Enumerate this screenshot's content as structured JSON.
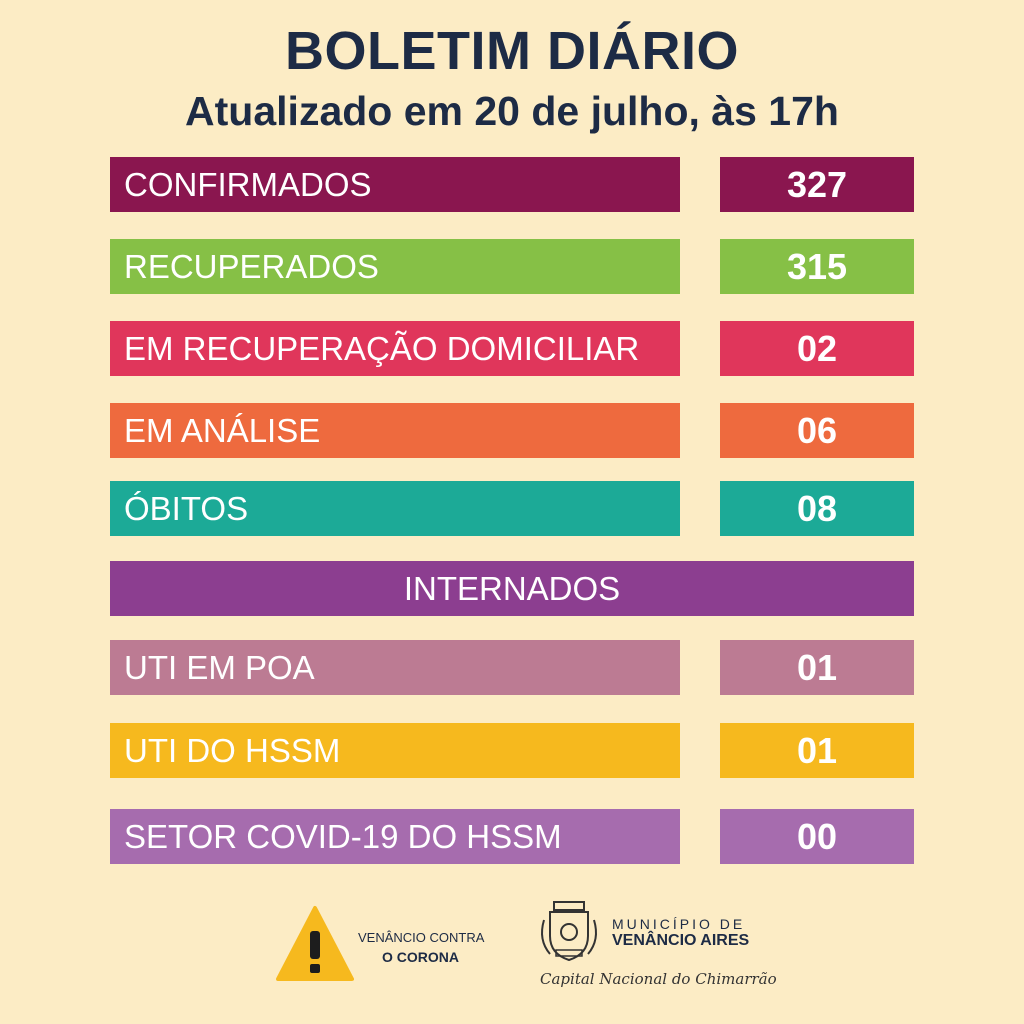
{
  "header": {
    "title": "BOLETIM DIÁRIO",
    "subtitle": "Atualizado em 20 de julho, às 17h"
  },
  "stats": [
    {
      "label": "CONFIRMADOS",
      "value": "327",
      "color": "#8a164f"
    },
    {
      "label": "RECUPERADOS",
      "value": "315",
      "color": "#86c046"
    },
    {
      "label": "EM RECUPERAÇÃO DOMICILIAR",
      "value": "02",
      "color": "#e0365b"
    },
    {
      "label": "EM ANÁLISE",
      "value": "06",
      "color": "#ee6a3e"
    },
    {
      "label": "ÓBITOS",
      "value": "08",
      "color": "#1caa97"
    }
  ],
  "internados": {
    "label": "INTERNADOS",
    "color": "#8c3e90",
    "items": [
      {
        "label": "UTI EM POA",
        "value": "01",
        "color": "#bc7b93"
      },
      {
        "label": "UTI DO HSSM",
        "value": "01",
        "color": "#f6b91e"
      },
      {
        "label": "SETOR COVID-19 DO HSSM",
        "value": "00",
        "color": "#a66cae"
      }
    ]
  },
  "footer": {
    "campaign_line1": "VENÂNCIO CONTRA",
    "campaign_line2": "O CORONA",
    "warning_icon": "warning-triangle-icon",
    "crest_icon": "municipal-crest-icon",
    "municipio_label": "MUNICÍPIO DE",
    "city_name": "VENÂNCIO AIRES",
    "slogan": "Capital Nacional do Chimarrão"
  }
}
